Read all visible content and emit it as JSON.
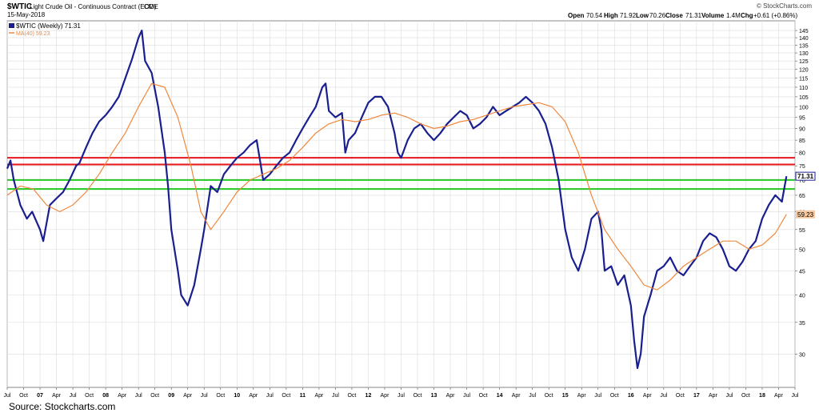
{
  "header": {
    "symbol": "$WTIC",
    "description": "Light Crude Oil - Continuous Contract (EOD)",
    "exchange": "CME",
    "date": "15-May-2018",
    "watermark": "© StockCharts.com",
    "open_label": "Open",
    "open_value": "70.54",
    "high_label": "High",
    "high_value": "71.92",
    "low_label": "Low",
    "low_value": "70.26",
    "close_label": "Close",
    "close_value": "71.31",
    "volume_label": "Volume",
    "volume_value": "1.4M",
    "chg_label": "Chg",
    "chg_value": "+0.61 (+0.86%)"
  },
  "legend": {
    "price_entry": "$WTIC (Weekly) 71.31",
    "ma_entry": "MA(40) 59.23"
  },
  "labels": {
    "last_price": "71.31",
    "last_ma": "59.23"
  },
  "source": "Source: Stockcharts.com",
  "colors": {
    "price": "#1a1f8f",
    "ma": "#f0883c",
    "resistance": "#e8151b",
    "support": "#22c81e",
    "grid": "#dcdcdc"
  },
  "chart_data": {
    "type": "line",
    "title": "$WTIC Light Crude Oil - Continuous Contract (EOD)",
    "y_scale": "log",
    "ylim": [
      25,
      150
    ],
    "y_ticks": [
      30,
      35,
      40,
      45,
      50,
      55,
      60,
      65,
      70,
      75,
      80,
      85,
      90,
      95,
      100,
      105,
      110,
      115,
      120,
      125,
      130,
      135,
      140,
      145
    ],
    "x_ticks": [
      "Jul",
      "Oct",
      "07",
      "Apr",
      "Jul",
      "Oct",
      "08",
      "Apr",
      "Jul",
      "Oct",
      "09",
      "Apr",
      "Jul",
      "Oct",
      "10",
      "Apr",
      "Jul",
      "Oct",
      "11",
      "Apr",
      "Jul",
      "Oct",
      "12",
      "Apr",
      "Jul",
      "Oct",
      "13",
      "Apr",
      "Jul",
      "Oct",
      "14",
      "Apr",
      "Jul",
      "Oct",
      "15",
      "Apr",
      "Jul",
      "Oct",
      "16",
      "Apr",
      "Jul",
      "Oct",
      "17",
      "Apr",
      "Jul",
      "Oct",
      "18",
      "Apr",
      "Jul"
    ],
    "xlim": [
      2006.5,
      2018.5
    ],
    "series": [
      {
        "name": "$WTIC (Weekly)",
        "x": [
          2006.5,
          2006.55,
          2006.6,
          2006.7,
          2006.8,
          2006.88,
          2007.0,
          2007.05,
          2007.15,
          2007.25,
          2007.35,
          2007.45,
          2007.55,
          2007.6,
          2007.7,
          2007.8,
          2007.9,
          2008.0,
          2008.1,
          2008.2,
          2008.3,
          2008.4,
          2008.5,
          2008.55,
          2008.6,
          2008.7,
          2008.8,
          2008.9,
          2008.95,
          2009.0,
          2009.1,
          2009.15,
          2009.25,
          2009.35,
          2009.45,
          2009.5,
          2009.6,
          2009.7,
          2009.8,
          2009.9,
          2010.0,
          2010.1,
          2010.2,
          2010.3,
          2010.4,
          2010.5,
          2010.6,
          2010.7,
          2010.8,
          2010.9,
          2011.0,
          2011.1,
          2011.2,
          2011.3,
          2011.35,
          2011.4,
          2011.5,
          2011.6,
          2011.65,
          2011.7,
          2011.8,
          2011.9,
          2012.0,
          2012.1,
          2012.2,
          2012.3,
          2012.4,
          2012.45,
          2012.5,
          2012.6,
          2012.7,
          2012.8,
          2012.9,
          2013.0,
          2013.1,
          2013.2,
          2013.3,
          2013.4,
          2013.5,
          2013.6,
          2013.7,
          2013.8,
          2013.9,
          2014.0,
          2014.1,
          2014.2,
          2014.3,
          2014.4,
          2014.5,
          2014.6,
          2014.7,
          2014.8,
          2014.9,
          2014.95,
          2015.0,
          2015.1,
          2015.2,
          2015.3,
          2015.4,
          2015.5,
          2015.55,
          2015.6,
          2015.7,
          2015.8,
          2015.9,
          2016.0,
          2016.05,
          2016.1,
          2016.15,
          2016.2,
          2016.3,
          2016.4,
          2016.5,
          2016.6,
          2016.7,
          2016.8,
          2016.9,
          2017.0,
          2017.1,
          2017.2,
          2017.3,
          2017.4,
          2017.45,
          2017.5,
          2017.6,
          2017.7,
          2017.8,
          2017.9,
          2018.0,
          2018.1,
          2018.2,
          2018.3,
          2018.37
        ],
        "values": [
          74,
          77,
          70,
          62,
          58,
          60,
          55,
          52,
          62,
          64,
          66,
          70,
          75,
          76,
          82,
          88,
          93,
          96,
          100,
          105,
          115,
          126,
          140,
          145,
          125,
          118,
          100,
          80,
          68,
          55,
          45,
          40,
          38,
          42,
          50,
          55,
          68,
          66,
          72,
          75,
          78,
          80,
          83,
          85,
          70,
          72,
          75,
          78,
          80,
          85,
          90,
          95,
          100,
          110,
          112,
          98,
          95,
          97,
          80,
          85,
          88,
          95,
          102,
          105,
          105,
          100,
          88,
          80,
          78,
          85,
          90,
          92,
          88,
          85,
          88,
          92,
          95,
          98,
          96,
          90,
          92,
          95,
          100,
          96,
          98,
          100,
          102,
          105,
          102,
          98,
          92,
          82,
          70,
          62,
          55,
          48,
          45,
          50,
          58,
          60,
          55,
          45,
          46,
          42,
          44,
          38,
          32,
          28,
          30,
          36,
          40,
          45,
          46,
          48,
          45,
          44,
          46,
          48,
          52,
          54,
          53,
          50,
          48,
          46,
          45,
          47,
          50,
          52,
          58,
          62,
          65,
          63,
          71.31
        ]
      },
      {
        "name": "MA(40)",
        "x": [
          2006.5,
          2006.7,
          2006.9,
          2007.1,
          2007.3,
          2007.5,
          2007.7,
          2007.9,
          2008.1,
          2008.3,
          2008.5,
          2008.7,
          2008.9,
          2009.1,
          2009.3,
          2009.45,
          2009.6,
          2009.8,
          2010.0,
          2010.2,
          2010.4,
          2010.6,
          2010.8,
          2011.0,
          2011.2,
          2011.4,
          2011.6,
          2011.8,
          2012.0,
          2012.2,
          2012.4,
          2012.6,
          2012.8,
          2013.0,
          2013.2,
          2013.4,
          2013.6,
          2013.8,
          2014.0,
          2014.2,
          2014.4,
          2014.6,
          2014.8,
          2015.0,
          2015.2,
          2015.4,
          2015.6,
          2015.8,
          2016.0,
          2016.2,
          2016.4,
          2016.6,
          2016.8,
          2017.0,
          2017.2,
          2017.4,
          2017.6,
          2017.8,
          2018.0,
          2018.2,
          2018.37
        ],
        "values": [
          65,
          68,
          67,
          62,
          60,
          62,
          66,
          72,
          80,
          88,
          100,
          112,
          110,
          95,
          75,
          60,
          55,
          60,
          66,
          70,
          72,
          74,
          77,
          82,
          88,
          92,
          94,
          93,
          94,
          96,
          97,
          95,
          92,
          90,
          91,
          93,
          94,
          96,
          98,
          100,
          101,
          102,
          100,
          93,
          80,
          65,
          55,
          50,
          46,
          42,
          41,
          43,
          46,
          48,
          50,
          52,
          52,
          50,
          51,
          54,
          59.23
        ]
      }
    ],
    "horizontal_lines": [
      {
        "kind": "resistance",
        "value": 78
      },
      {
        "kind": "resistance",
        "value": 75.5
      },
      {
        "kind": "support",
        "value": 70
      },
      {
        "kind": "support",
        "value": 67
      }
    ]
  }
}
